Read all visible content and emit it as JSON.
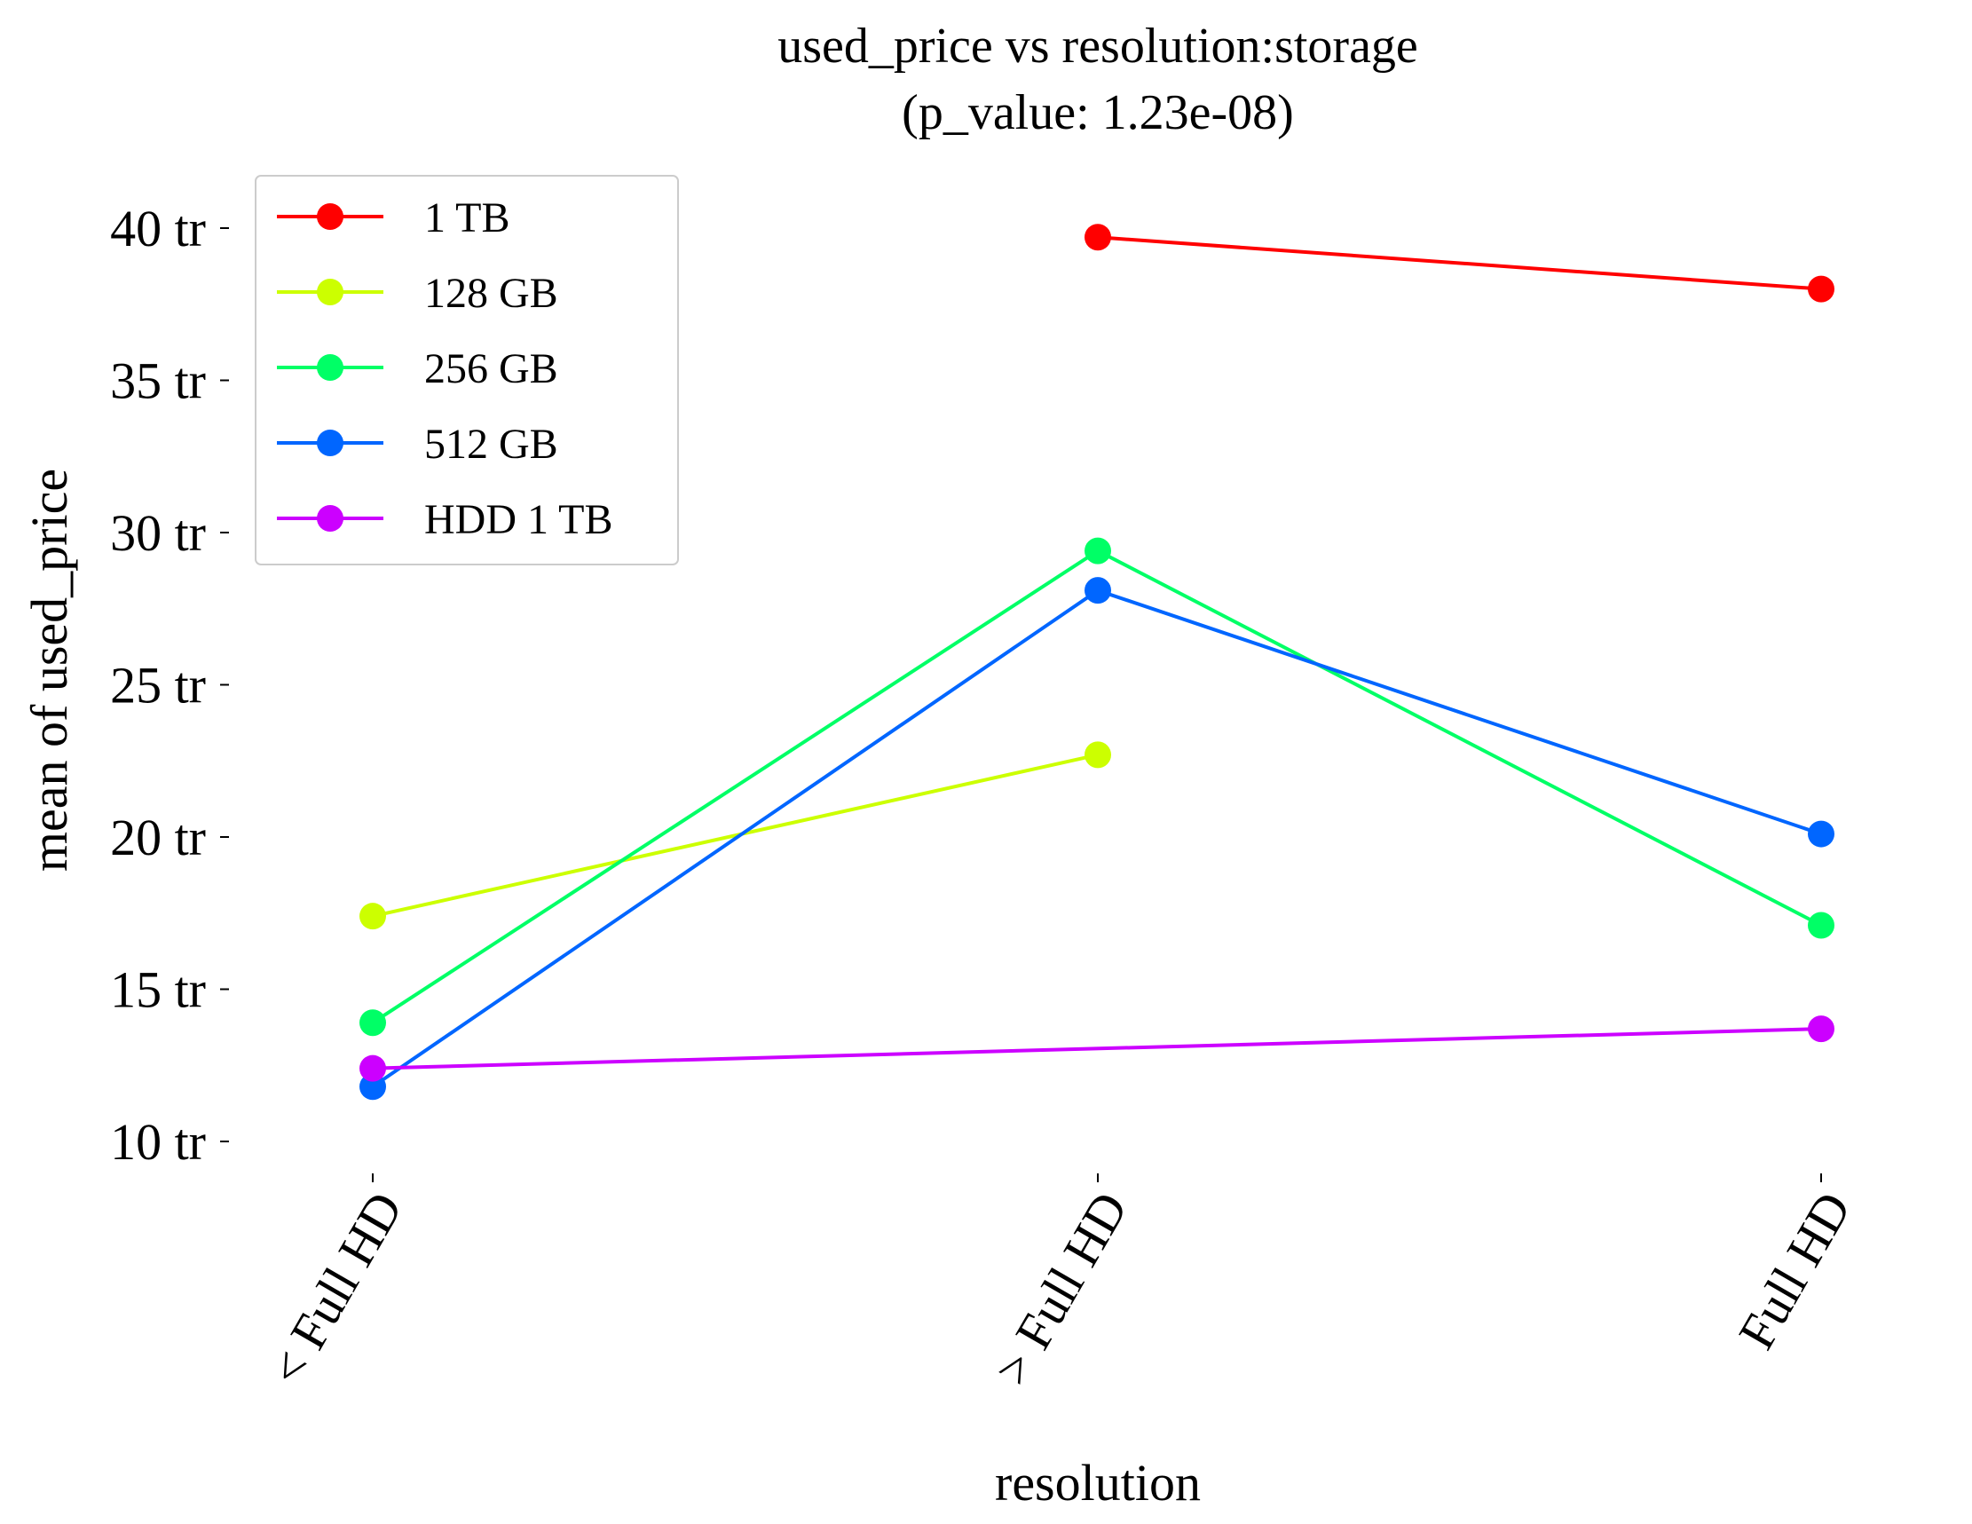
{
  "chart_data": {
    "type": "line",
    "title": "used_price vs resolution:storage",
    "subtitle": "(p_value: 1.23e-08)",
    "xlabel": "resolution",
    "ylabel": "mean of used_price",
    "categories": [
      "< Full HD",
      "> Full HD",
      "Full HD"
    ],
    "ylim": [
      9.0,
      41.5
    ],
    "yticks": [
      10,
      15,
      20,
      25,
      30,
      35,
      40
    ],
    "ytick_labels": [
      "10 tr",
      "15 tr",
      "20 tr",
      "25 tr",
      "30 tr",
      "35 tr",
      "40 tr"
    ],
    "grid": false,
    "legend_position": "top-left",
    "series": [
      {
        "name": "1 TB",
        "color": "#ff0000",
        "values": [
          null,
          39.7,
          38.0
        ]
      },
      {
        "name": "128 GB",
        "color": "#ccff00",
        "values": [
          17.4,
          22.7,
          null
        ]
      },
      {
        "name": "256 GB",
        "color": "#00ff66",
        "values": [
          13.9,
          29.4,
          17.1
        ]
      },
      {
        "name": "512 GB",
        "color": "#0066ff",
        "values": [
          11.8,
          28.1,
          20.1
        ]
      },
      {
        "name": "HDD 1 TB",
        "color": "#cc00ff",
        "values": [
          12.4,
          null,
          13.7
        ]
      }
    ]
  }
}
